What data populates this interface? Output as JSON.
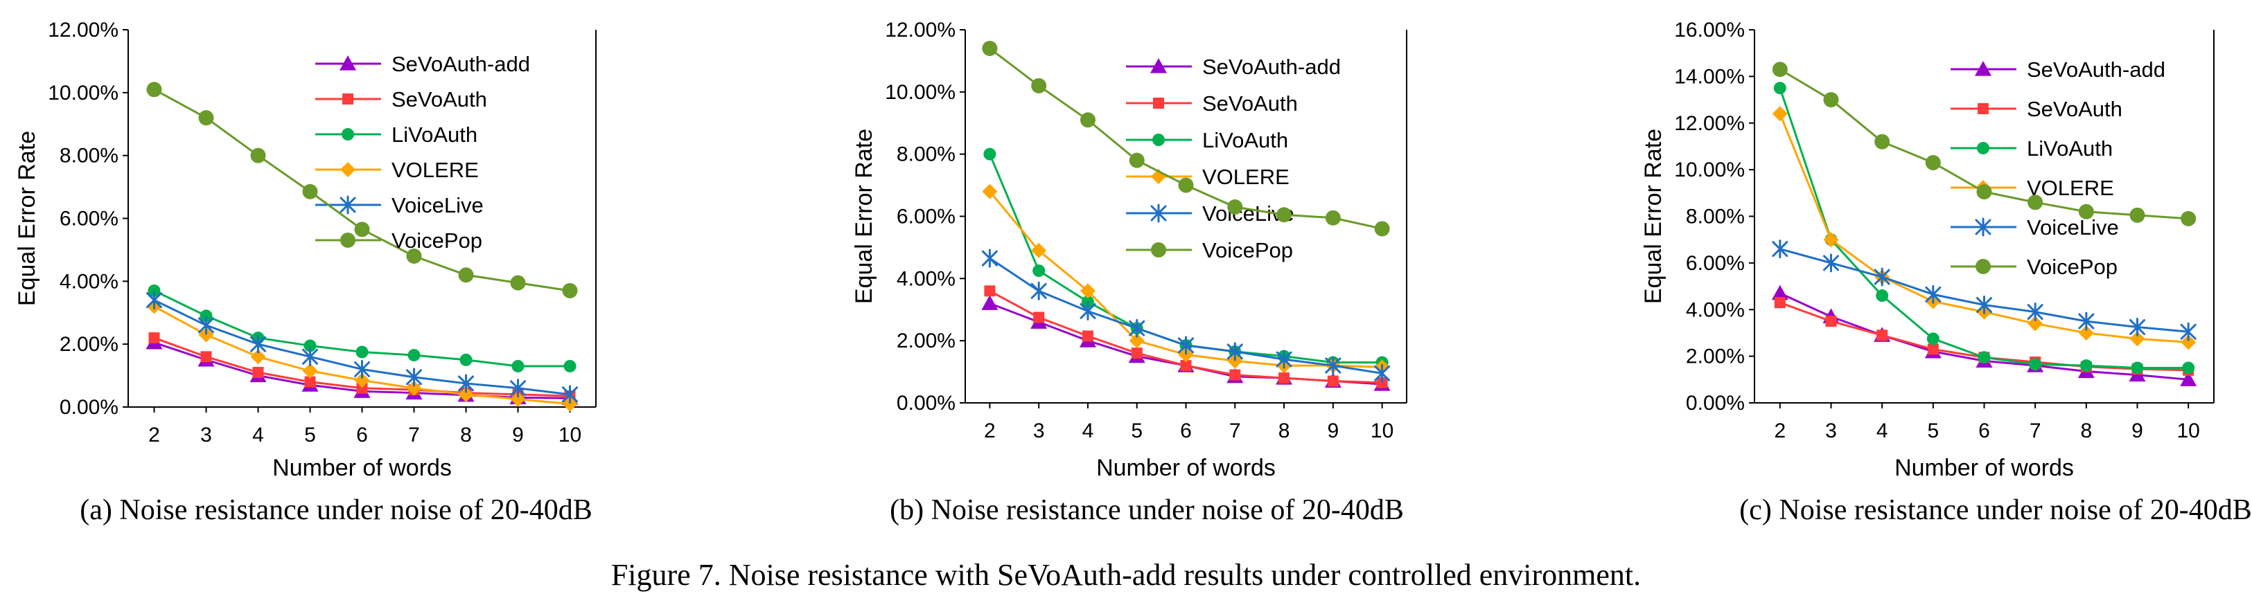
{
  "figure_caption": "Figure 7. Noise resistance with SeVoAuth-add results under controlled environment.",
  "colors": {
    "SeVoAuth-add": "#9900cc",
    "SeVoAuth": "#ff3b3b",
    "LiVoAuth": "#00b050",
    "VOLERE": "#ffa500",
    "VoiceLive": "#1f6fc5",
    "VoicePop": "#6a9a2a"
  },
  "chart_data": [
    {
      "type": "line",
      "caption": "(a) Noise resistance under noise of 20-40dB",
      "xlabel": "Number of words",
      "ylabel": "Equal Error Rate",
      "x": [
        2,
        3,
        4,
        5,
        6,
        7,
        8,
        9,
        10
      ],
      "ylim": [
        0,
        12
      ],
      "yticks": [
        0,
        2,
        4,
        6,
        8,
        10,
        12
      ],
      "ytick_labels": [
        "0.00%",
        "2.00%",
        "4.00%",
        "6.00%",
        "8.00%",
        "10.00%",
        "12.00%"
      ],
      "legend": "top-right",
      "series": [
        {
          "name": "SeVoAuth-add",
          "marker": "triangle",
          "values": [
            2.05,
            1.5,
            1.0,
            0.7,
            0.5,
            0.45,
            0.38,
            0.3,
            0.28
          ]
        },
        {
          "name": "SeVoAuth",
          "marker": "square",
          "values": [
            2.2,
            1.6,
            1.1,
            0.8,
            0.6,
            0.55,
            0.45,
            0.4,
            0.35
          ]
        },
        {
          "name": "LiVoAuth",
          "marker": "circle",
          "values": [
            3.7,
            2.9,
            2.2,
            1.95,
            1.75,
            1.65,
            1.5,
            1.3,
            1.3
          ]
        },
        {
          "name": "VOLERE",
          "marker": "diamond",
          "values": [
            3.2,
            2.3,
            1.6,
            1.15,
            0.85,
            0.6,
            0.4,
            0.25,
            0.1
          ]
        },
        {
          "name": "VoiceLive",
          "marker": "star",
          "values": [
            3.4,
            2.6,
            2.0,
            1.6,
            1.2,
            0.95,
            0.75,
            0.6,
            0.4
          ]
        },
        {
          "name": "VoicePop",
          "marker": "circle-large",
          "values": [
            10.1,
            9.2,
            8.0,
            6.85,
            5.65,
            4.8,
            4.2,
            3.95,
            3.7
          ]
        }
      ]
    },
    {
      "type": "line",
      "caption": "(b) Noise resistance under noise of 20-40dB",
      "xlabel": "Number of words",
      "ylabel": "Equal Error Rate",
      "x": [
        2,
        3,
        4,
        5,
        6,
        7,
        8,
        9,
        10
      ],
      "ylim": [
        0,
        12
      ],
      "yticks": [
        0,
        2,
        4,
        6,
        8,
        10,
        12
      ],
      "ytick_labels": [
        "0.00%",
        "2.00%",
        "4.00%",
        "6.00%",
        "8.00%",
        "10.00%",
        "12.00%"
      ],
      "legend": "top-right",
      "series": [
        {
          "name": "SeVoAuth-add",
          "marker": "triangle",
          "values": [
            3.2,
            2.6,
            2.0,
            1.5,
            1.2,
            0.85,
            0.8,
            0.7,
            0.6
          ]
        },
        {
          "name": "SeVoAuth",
          "marker": "square",
          "values": [
            3.6,
            2.75,
            2.15,
            1.6,
            1.2,
            0.9,
            0.8,
            0.7,
            0.65
          ]
        },
        {
          "name": "LiVoAuth",
          "marker": "circle",
          "values": [
            8.0,
            4.25,
            3.25,
            2.4,
            1.85,
            1.65,
            1.5,
            1.3,
            1.3
          ]
        },
        {
          "name": "VOLERE",
          "marker": "diamond",
          "values": [
            6.8,
            4.9,
            3.6,
            2.0,
            1.55,
            1.35,
            1.2,
            1.2,
            1.15
          ]
        },
        {
          "name": "VoiceLive",
          "marker": "star",
          "values": [
            4.65,
            3.6,
            2.95,
            2.4,
            1.85,
            1.65,
            1.4,
            1.2,
            0.95
          ]
        },
        {
          "name": "VoicePop",
          "marker": "circle-large",
          "values": [
            11.4,
            10.2,
            9.1,
            7.8,
            7.0,
            6.3,
            6.05,
            5.95,
            5.6
          ]
        }
      ]
    },
    {
      "type": "line",
      "caption": "(c) Noise resistance under noise of 20-40dB",
      "xlabel": "Number of words",
      "ylabel": "Equal Error Rate",
      "x": [
        2,
        3,
        4,
        5,
        6,
        7,
        8,
        9,
        10
      ],
      "ylim": [
        0,
        16
      ],
      "yticks": [
        0,
        2,
        4,
        6,
        8,
        10,
        12,
        14,
        16
      ],
      "ytick_labels": [
        "0.00%",
        "2.00%",
        "4.00%",
        "6.00%",
        "8.00%",
        "10.00%",
        "12.00%",
        "14.00%",
        "16.00%"
      ],
      "legend": "top-right",
      "series": [
        {
          "name": "SeVoAuth-add",
          "marker": "triangle",
          "values": [
            4.7,
            3.7,
            2.9,
            2.2,
            1.8,
            1.6,
            1.35,
            1.2,
            1.0
          ]
        },
        {
          "name": "SeVoAuth",
          "marker": "square",
          "values": [
            4.3,
            3.5,
            2.9,
            2.3,
            1.95,
            1.75,
            1.55,
            1.45,
            1.4
          ]
        },
        {
          "name": "LiVoAuth",
          "marker": "circle",
          "values": [
            13.5,
            7.0,
            4.6,
            2.75,
            1.95,
            1.65,
            1.6,
            1.5,
            1.5
          ]
        },
        {
          "name": "VOLERE",
          "marker": "diamond",
          "values": [
            12.4,
            7.0,
            5.4,
            4.35,
            3.9,
            3.4,
            3.0,
            2.75,
            2.6
          ]
        },
        {
          "name": "VoiceLive",
          "marker": "star",
          "values": [
            6.6,
            6.0,
            5.4,
            4.65,
            4.2,
            3.9,
            3.5,
            3.25,
            3.05
          ]
        },
        {
          "name": "VoicePop",
          "marker": "circle-large",
          "values": [
            14.3,
            13.0,
            11.2,
            10.3,
            9.05,
            8.6,
            8.2,
            8.05,
            7.9
          ]
        }
      ]
    }
  ]
}
